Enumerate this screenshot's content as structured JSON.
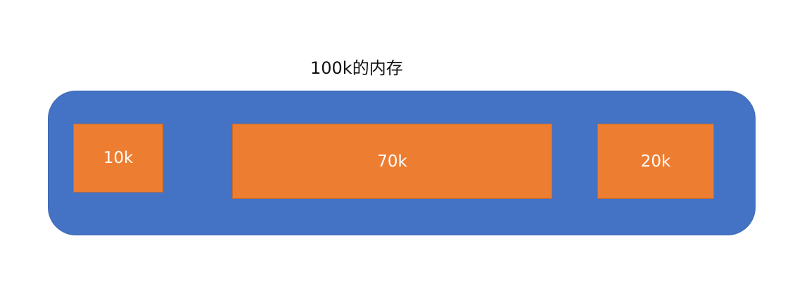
{
  "title": "100k的内存",
  "colors": {
    "memory_container": "#4472c4",
    "memory_block": "#ed7d31",
    "block_text": "#ffffff",
    "title_text": "#111111",
    "background": "#ffffff"
  },
  "blocks": [
    {
      "label": "10k"
    },
    {
      "label": "70k"
    },
    {
      "label": "20k"
    }
  ]
}
